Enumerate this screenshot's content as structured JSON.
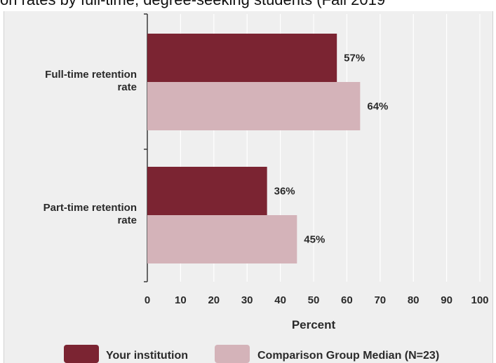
{
  "header": {
    "clipped_title": "on rates by full-time, degree-seeking students (Fall 2019"
  },
  "chart_data": {
    "type": "bar",
    "orientation": "horizontal",
    "categories": [
      "Full-time retention\nrate",
      "Part-time retention\nrate"
    ],
    "series": [
      {
        "name": "Your institution",
        "color": "#7b2432",
        "values": [
          57,
          36
        ],
        "labels": [
          "57%",
          "36%"
        ]
      },
      {
        "name": "Comparison Group Median (N=23)",
        "color": "#d4b3b9",
        "values": [
          64,
          45
        ],
        "labels": [
          "64%",
          "45%"
        ]
      }
    ],
    "xlabel": "Percent",
    "xlim": [
      0,
      100
    ],
    "xticks": [
      0,
      10,
      20,
      30,
      40,
      50,
      60,
      70,
      80,
      90,
      100
    ],
    "grid": true,
    "legend_position": "bottom"
  }
}
